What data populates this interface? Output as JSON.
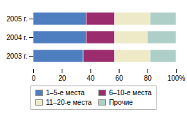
{
  "chart_data": {
    "type": "bar",
    "orientation": "horizontal",
    "stacked": true,
    "categories": [
      "2003 г.",
      "2004 г.",
      "2005 г."
    ],
    "series": [
      {
        "name": "1–5-е места",
        "color": "#4E7EC0",
        "values": [
          35,
          37,
          37
        ]
      },
      {
        "name": "6–10-е места",
        "color": "#9B2D6E",
        "values": [
          22,
          20,
          20
        ]
      },
      {
        "name": "11–20-е места",
        "color": "#EEEAC8",
        "values": [
          25,
          23,
          25
        ]
      },
      {
        "name": "Прочие",
        "color": "#AECFC8",
        "values": [
          18,
          20,
          18
        ]
      }
    ],
    "xlim": [
      0,
      100
    ],
    "xticks": [
      0,
      20,
      40,
      60,
      80,
      {
        "value": 100,
        "label": "100%"
      }
    ],
    "grid": false,
    "legend": "bottom"
  }
}
